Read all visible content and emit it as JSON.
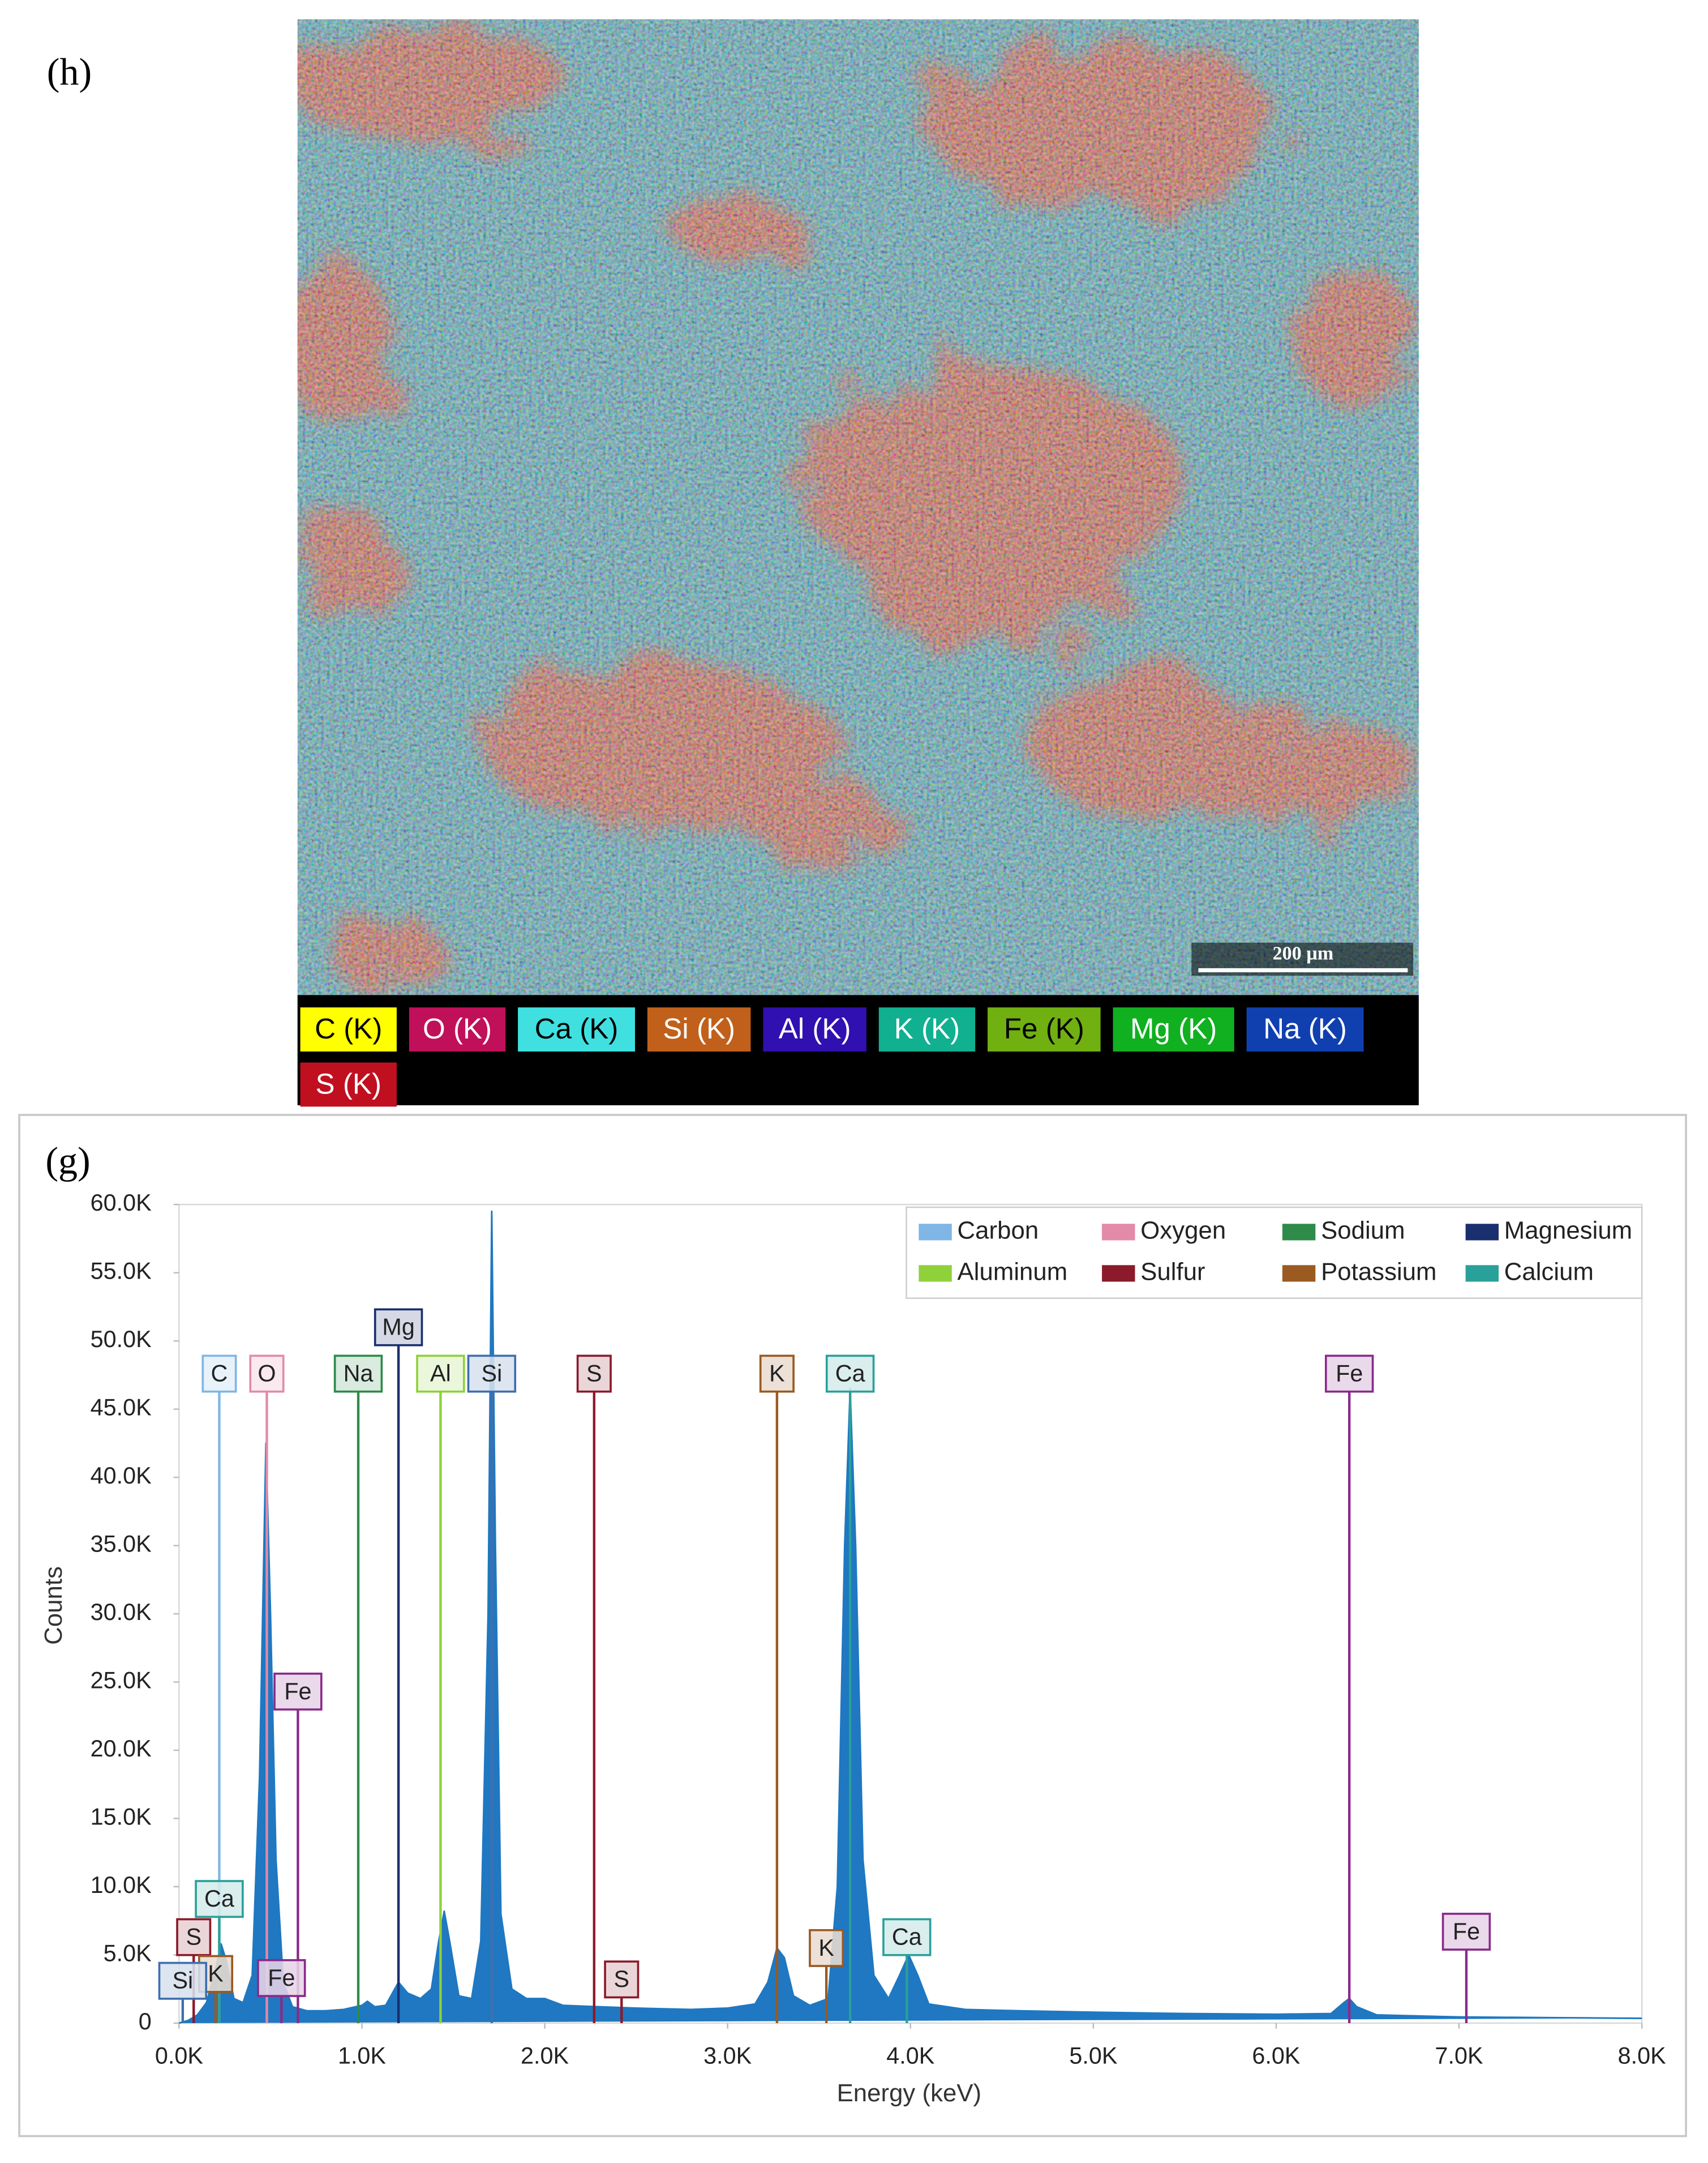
{
  "map": {
    "label": "(h)",
    "scale_bar": "200 µm",
    "legend": [
      {
        "label": "C (K)",
        "color": "#ffff00"
      },
      {
        "label": "O (K)",
        "color": "#c0105a"
      },
      {
        "label": "Ca (K)",
        "color": "#40e0e0"
      },
      {
        "label": "Si (K)",
        "color": "#c0601a"
      },
      {
        "label": "Al (K)",
        "color": "#3010b0"
      },
      {
        "label": "K (K)",
        "color": "#10b090"
      },
      {
        "label": "Fe (K)",
        "color": "#70b010"
      },
      {
        "label": "Mg (K)",
        "color": "#10b020"
      },
      {
        "label": "Na (K)",
        "color": "#1040b0"
      },
      {
        "label": "S (K)",
        "color": "#c01020"
      }
    ]
  },
  "chart_data": {
    "type": "area",
    "panel_label": "(g)",
    "xlabel": "Energy (keV)",
    "ylabel": "Counts",
    "color": "#1f78c1",
    "x": [
      0,
      0.05,
      0.1,
      0.15,
      0.2,
      0.23,
      0.26,
      0.3,
      0.35,
      0.4,
      0.44,
      0.475,
      0.5,
      0.53,
      0.57,
      0.62,
      0.7,
      0.8,
      0.9,
      1.0,
      1.03,
      1.07,
      1.13,
      1.2,
      1.25,
      1.32,
      1.38,
      1.42,
      1.45,
      1.48,
      1.53,
      1.6,
      1.65,
      1.69,
      1.71,
      1.73,
      1.76,
      1.82,
      1.9,
      2.0,
      2.1,
      2.3,
      2.5,
      2.8,
      3.0,
      3.15,
      3.22,
      3.27,
      3.31,
      3.36,
      3.45,
      3.55,
      3.6,
      3.64,
      3.67,
      3.7,
      3.74,
      3.8,
      3.88,
      3.94,
      3.99,
      4.04,
      4.1,
      4.3,
      4.6,
      5.0,
      5.5,
      6.0,
      6.3,
      6.37,
      6.4,
      6.44,
      6.55,
      7.0,
      7.5,
      8.0
    ],
    "values": [
      0,
      200,
      600,
      1500,
      4000,
      5800,
      4500,
      1800,
      1500,
      3500,
      18000,
      42500,
      30000,
      12000,
      3000,
      1200,
      900,
      900,
      1000,
      1300,
      1600,
      1200,
      1300,
      3000,
      2200,
      1800,
      2500,
      6000,
      8200,
      6000,
      2000,
      1800,
      6000,
      30000,
      59500,
      35000,
      8000,
      2500,
      1800,
      1800,
      1300,
      1200,
      1100,
      1000,
      1100,
      1400,
      3000,
      5500,
      4800,
      2000,
      1300,
      1800,
      10000,
      35000,
      46500,
      35000,
      12000,
      3500,
      1800,
      3500,
      5000,
      3500,
      1400,
      1000,
      900,
      800,
      700,
      650,
      700,
      1500,
      1800,
      1200,
      600,
      450,
      400,
      350
    ],
    "xlim": [
      0,
      8
    ],
    "ylim": [
      0,
      60000
    ],
    "xticks": [
      {
        "value": 0,
        "label": "0.0K"
      },
      {
        "value": 1,
        "label": "1.0K"
      },
      {
        "value": 2,
        "label": "2.0K"
      },
      {
        "value": 3,
        "label": "3.0K"
      },
      {
        "value": 4,
        "label": "4.0K"
      },
      {
        "value": 5,
        "label": "5.0K"
      },
      {
        "value": 6,
        "label": "6.0K"
      },
      {
        "value": 7,
        "label": "7.0K"
      },
      {
        "value": 8,
        "label": "8.0K"
      }
    ],
    "yticks": [
      0,
      {
        "value": 5000,
        "label": "5.0K"
      },
      {
        "value": 10000,
        "label": "10.0K"
      },
      {
        "value": 15000,
        "label": "15.0K"
      },
      {
        "value": 20000,
        "label": "20.0K"
      },
      {
        "value": 25000,
        "label": "25.0K"
      },
      {
        "value": 30000,
        "label": "30.0K"
      },
      {
        "value": 35000,
        "label": "35.0K"
      },
      {
        "value": 40000,
        "label": "40.0K"
      },
      {
        "value": 45000,
        "label": "45.0K"
      },
      {
        "value": 50000,
        "label": "50.0K"
      },
      {
        "value": 55000,
        "label": "55.0K"
      },
      {
        "value": 60000,
        "label": "60.0K"
      }
    ],
    "legend": [
      {
        "name": "Carbon",
        "color": "#7fb6e6"
      },
      {
        "name": "Oxygen",
        "color": "#e28aa8"
      },
      {
        "name": "Sodium",
        "color": "#2e8b4a"
      },
      {
        "name": "Magnesium",
        "color": "#1a2f6e"
      },
      {
        "name": "Aluminum",
        "color": "#8fd13a"
      },
      {
        "name": "Sulfur",
        "color": "#8b1a2a"
      },
      {
        "name": "Potassium",
        "color": "#9a5a20"
      },
      {
        "name": "Calcium",
        "color": "#2aa09a"
      }
    ],
    "peak_labels": [
      {
        "label": "C",
        "x": 0.22,
        "y": 47600,
        "color": "#7fb6e6"
      },
      {
        "label": "O",
        "x": 0.48,
        "y": 47600,
        "color": "#e28aa8"
      },
      {
        "label": "Na",
        "x": 0.98,
        "y": 47600,
        "color": "#2e8b4a"
      },
      {
        "label": "Mg",
        "x": 1.2,
        "y": 51000,
        "color": "#1a2f6e"
      },
      {
        "label": "Al",
        "x": 1.43,
        "y": 47600,
        "color": "#8fd13a"
      },
      {
        "label": "Si",
        "x": 1.71,
        "y": 47600,
        "color": "#3f6fae"
      },
      {
        "label": "S",
        "x": 2.27,
        "y": 47600,
        "color": "#8b1a2a"
      },
      {
        "label": "K",
        "x": 3.27,
        "y": 47600,
        "color": "#9a5a20"
      },
      {
        "label": "Ca",
        "x": 3.67,
        "y": 47600,
        "color": "#2aa09a"
      },
      {
        "label": "Fe",
        "x": 6.4,
        "y": 47600,
        "color": "#8a2a8a"
      },
      {
        "label": "Fe",
        "x": 0.65,
        "y": 24300,
        "color": "#8a2a8a"
      },
      {
        "label": "Ca",
        "x": 0.22,
        "y": 9100,
        "color": "#2aa09a"
      },
      {
        "label": "S",
        "x": 0.08,
        "y": 6300,
        "color": "#8b1a2a"
      },
      {
        "label": "K",
        "x": 0.2,
        "y": 3600,
        "color": "#9a5a20"
      },
      {
        "label": "Si",
        "x": 0.02,
        "y": 3100,
        "color": "#3f6fae"
      },
      {
        "label": "Fe",
        "x": 0.56,
        "y": 3300,
        "color": "#8a2a8a"
      },
      {
        "label": "S",
        "x": 2.42,
        "y": 3200,
        "color": "#8b1a2a"
      },
      {
        "label": "K",
        "x": 3.54,
        "y": 5500,
        "color": "#9a5a20"
      },
      {
        "label": "Ca",
        "x": 3.98,
        "y": 6300,
        "color": "#2aa09a"
      },
      {
        "label": "Fe",
        "x": 7.04,
        "y": 6700,
        "color": "#8a2a8a"
      }
    ]
  }
}
